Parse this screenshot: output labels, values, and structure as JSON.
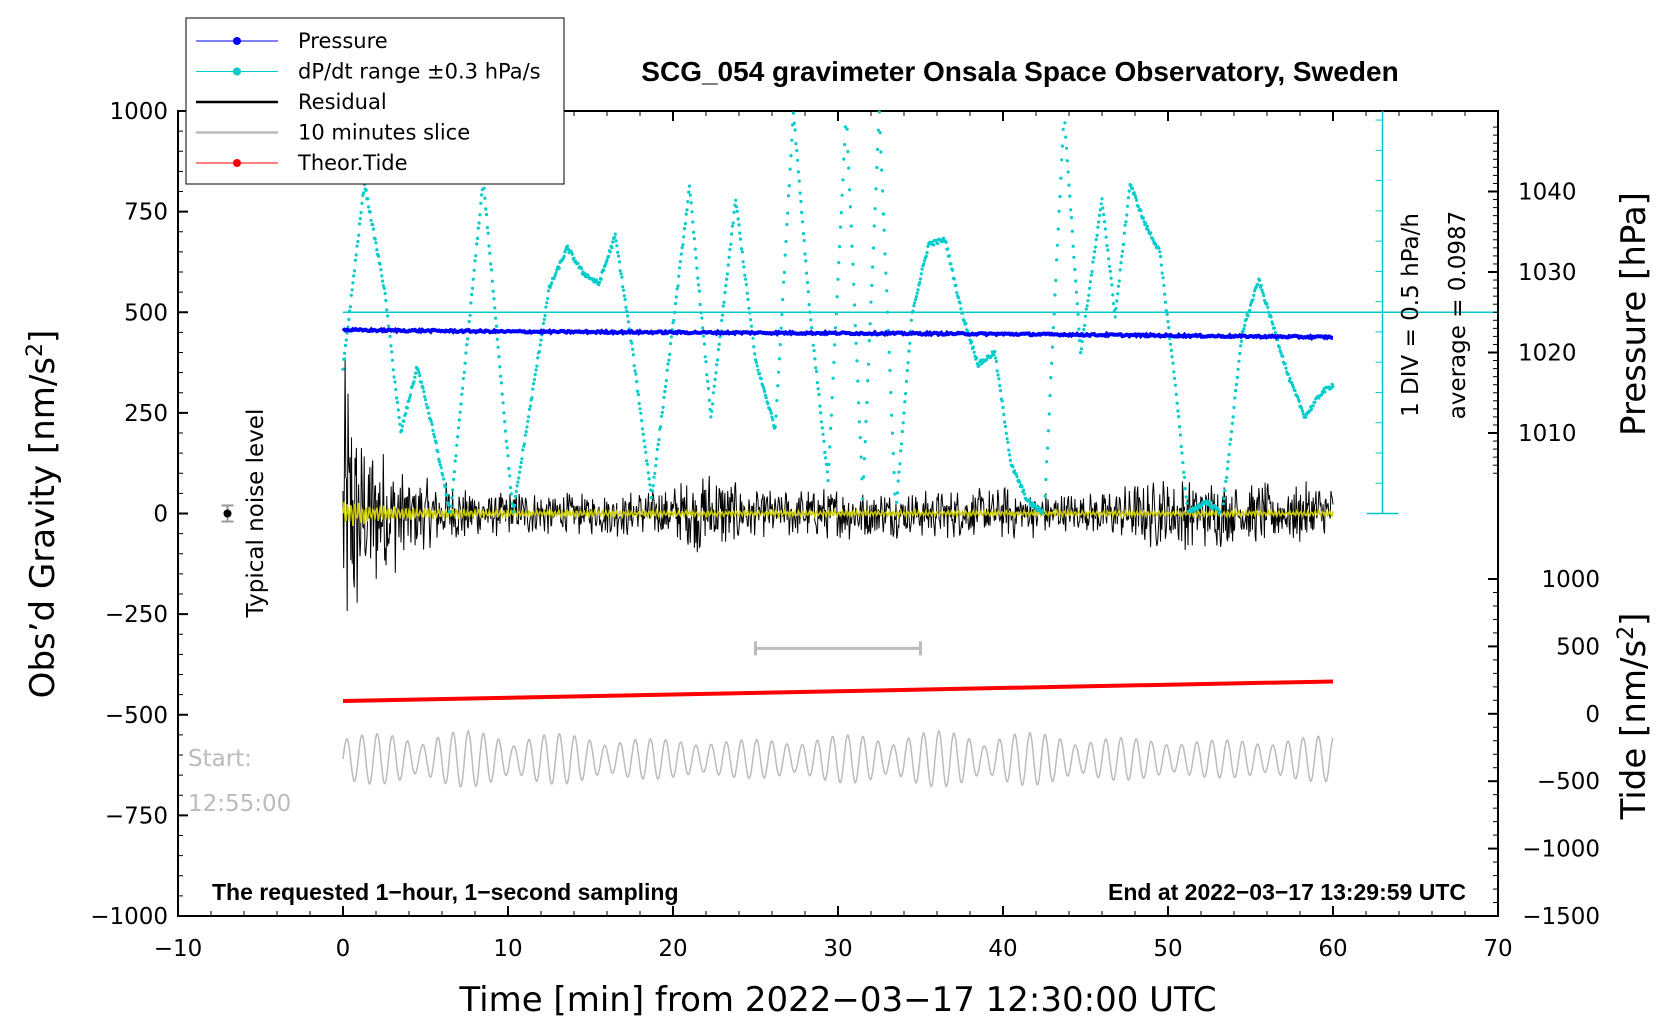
{
  "chart_data": {
    "type": "line",
    "title": "SCG_054 gravimeter Onsala Space Observatory, Sweden",
    "xlabel": "Time [min] from 2022−03−17 12:30:00 UTC",
    "ylabel_left": "Obs’d Gravity [nm/s²]",
    "ylabel_left_main": "Obs’d Gravity [nm/s",
    "ylabel_right_pressure_main": "Pressure [hPa]",
    "ylabel_right_tide_main": "Tide [nm/s",
    "sup2": "2",
    "close_bracket": "]",
    "xlim": [
      -10,
      70
    ],
    "xticks": [
      "−10",
      "0",
      "10",
      "20",
      "30",
      "40",
      "50",
      "60",
      "70"
    ],
    "xtick_values": [
      -10,
      0,
      10,
      20,
      30,
      40,
      50,
      60,
      70
    ],
    "ylim_left": [
      -1000,
      1000
    ],
    "yticks_left": [
      "−1000",
      "−750",
      "−500",
      "−250",
      "0",
      "250",
      "500",
      "750",
      "1000"
    ],
    "ytick_values_left": [
      -1000,
      -750,
      -500,
      -250,
      0,
      250,
      500,
      750,
      1000
    ],
    "pressure_ticks": [
      "1010",
      "1020",
      "1030",
      "1040"
    ],
    "pressure_tick_values": [
      1010,
      1020,
      1030,
      1040
    ],
    "pressure_range": [
      1000,
      1050
    ],
    "tide_ticks": [
      "−1500",
      "−1000",
      "−500",
      "0",
      "500",
      "1000"
    ],
    "tide_tick_values": [
      -1500,
      -1000,
      -500,
      0,
      500,
      1000
    ],
    "tide_range": [
      -1500,
      1000
    ],
    "legend": [
      {
        "label": "Pressure",
        "color": "#0000ff",
        "marker": true
      },
      {
        "label": "dP/dt range ±0.3 hPa/s",
        "color": "#00cccc",
        "marker": true
      },
      {
        "label": "Residual",
        "color": "#000000",
        "marker": false
      },
      {
        "label": "10 minutes slice",
        "color": "#bbbbbb",
        "marker": false
      },
      {
        "label": "Theor.Tide",
        "color": "#ff0000",
        "marker": true
      }
    ],
    "series": [
      {
        "name": "Pressure",
        "color": "#0000ff",
        "axis": "pressure",
        "x": [
          0,
          10,
          20,
          30,
          40,
          45,
          50,
          55,
          60
        ],
        "values": [
          1022.8,
          1022.6,
          1022.5,
          1022.4,
          1022.3,
          1022.2,
          1022.1,
          1022.0,
          1021.9
        ]
      },
      {
        "name": "dP/dt",
        "color": "#00cccc",
        "axis": "left",
        "x": [
          0,
          1.3,
          2.5,
          3.5,
          4.5,
          5.5,
          6.5,
          8.5,
          10.3,
          12.5,
          13.6,
          14.5,
          15.5,
          16.5,
          17.5,
          18.7,
          19.8,
          21,
          22.3,
          23.8,
          25,
          26.2,
          27.3,
          28.3,
          29.4,
          30.5,
          31.5,
          32.5,
          33.5,
          34.5,
          35.5,
          36.5,
          37.5,
          38.5,
          39.5,
          40.5,
          41.5,
          42.5,
          43.7,
          44.7,
          46,
          46.8,
          47.7,
          48.6,
          49.5,
          50.5,
          51.2,
          52.3,
          53.3,
          54.5,
          55.5,
          56.5,
          57.3,
          58.3,
          59.3,
          60
        ],
        "values": [
          360,
          820,
          560,
          200,
          365,
          200,
          0,
          830,
          0,
          560,
          660,
          600,
          570,
          690,
          420,
          40,
          400,
          810,
          240,
          780,
          380,
          210,
          1000,
          500,
          80,
          1000,
          40,
          1000,
          0,
          500,
          670,
          680,
          500,
          370,
          400,
          120,
          30,
          0,
          1000,
          400,
          780,
          490,
          820,
          720,
          650,
          300,
          0,
          30,
          0,
          450,
          580,
          450,
          340,
          240,
          300,
          320
        ]
      },
      {
        "name": "Residual",
        "color": "#000000",
        "axis": "left",
        "amplitude_env_x": [
          0,
          1,
          3,
          5,
          10,
          15,
          20,
          22,
          25,
          30,
          35,
          40,
          45,
          50,
          55,
          60
        ],
        "amplitude_env": [
          450,
          260,
          160,
          90,
          60,
          55,
          70,
          120,
          60,
          70,
          60,
          70,
          50,
          100,
          80,
          80
        ]
      },
      {
        "name": "Residual (yellow)",
        "color": "#cccc00",
        "axis": "left",
        "amplitude_env_x": [
          0,
          3,
          10,
          30,
          60
        ],
        "amplitude_env": [
          35,
          18,
          10,
          8,
          8
        ]
      },
      {
        "name": "Theor.Tide",
        "color": "#ff0000",
        "axis": "tide",
        "x": [
          0,
          60
        ],
        "values": [
          95,
          240
        ]
      },
      {
        "name": "10 minutes slice",
        "color": "#bbbbbb",
        "axis": "left",
        "x": [
          0,
          60
        ],
        "center": -610,
        "amplitude": 70
      }
    ],
    "slice_bar": {
      "x_start": 25,
      "x_end": 35,
      "y": -335
    },
    "noise_marker": {
      "x": -7,
      "y": 0,
      "err": 20
    },
    "pressure_hline_value": 500,
    "scale_bar_labels": [
      "1 DIV = 0.5 hPa/h",
      "average = 0.0987"
    ],
    "noise_label": "Typical noise level",
    "start_label": "Start:",
    "start_time": "12:55:00",
    "bottom_left_note": "The requested 1−hour, 1−second sampling",
    "bottom_right_note": "End at 2022−03−17 13:29:59 UTC"
  }
}
